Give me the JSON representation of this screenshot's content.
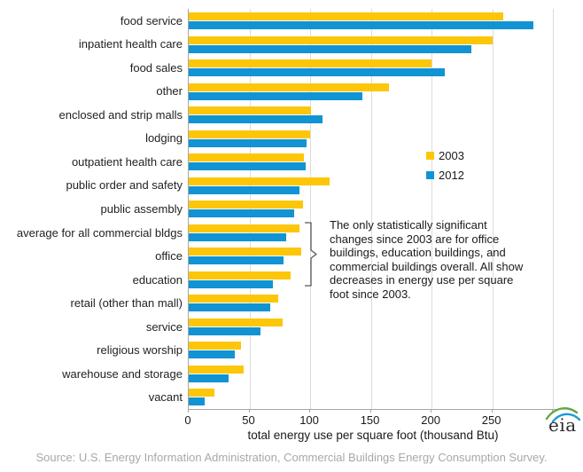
{
  "chart_data": {
    "type": "bar",
    "orientation": "horizontal",
    "title": "",
    "xlabel": "total energy use per square foot (thousand Btu)",
    "ylabel": "",
    "xlim": [
      0,
      305
    ],
    "xticks": [
      0,
      50,
      100,
      150,
      200,
      250
    ],
    "gridline_values": [
      50,
      100,
      150,
      200,
      250,
      300
    ],
    "grid": true,
    "legend_position": "middle-right",
    "categories": [
      "food service",
      "inpatient health care",
      "food sales",
      "other",
      "enclosed and strip malls",
      "lodging",
      "outpatient health care",
      "public order and safety",
      "public assembly",
      "average for all commercial bldgs",
      "office",
      "education",
      "retail (other than mall)",
      "service",
      "religious worship",
      "warehouse and storage",
      "vacant"
    ],
    "series": [
      {
        "name": "2003",
        "color": "#FDC608",
        "values": [
          259,
          250,
          200,
          165,
          101,
          100,
          95,
          116,
          94,
          91,
          93,
          84,
          74,
          77,
          43,
          45,
          21
        ]
      },
      {
        "name": "2012",
        "color": "#1193D4",
        "values": [
          284,
          233,
          211,
          143,
          110,
          97,
          96,
          91,
          87,
          80,
          78,
          69,
          67,
          59,
          38,
          33,
          13
        ]
      }
    ]
  },
  "legend": {
    "items": [
      {
        "label": "2003",
        "color": "#FDC608"
      },
      {
        "label": "2012",
        "color": "#1193D4"
      }
    ]
  },
  "annotation": {
    "text": "The only statistically significant changes since 2003 are for office buildings, education buildings, and commercial buildings overall. All show decreases in energy use per square foot since 2003."
  },
  "axis": {
    "title": "total energy use per square foot (thousand Btu)"
  },
  "footer": {
    "source": "Source: U.S. Energy Information Administration, Commercial Buildings Energy Consumption Survey."
  },
  "logo": {
    "text": "eia"
  },
  "colors": {
    "gridline": "#dcdcdc",
    "axis_line": "#a6a6a6",
    "text": "#1a1a1a",
    "source_text": "#a8a8a8",
    "bracket": "#595959",
    "logo_green": "#62A744",
    "logo_blue": "#1E9CD7"
  }
}
